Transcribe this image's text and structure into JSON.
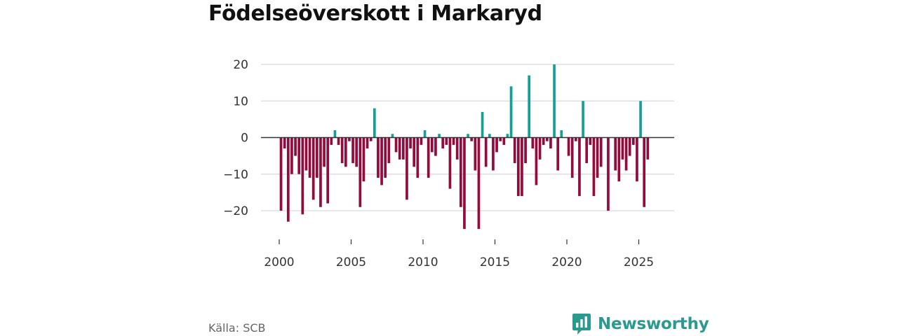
{
  "chart_data": {
    "type": "bar",
    "title": "Födelseöverskott i Markaryd",
    "xlabel": "",
    "ylabel": "",
    "ylim": [
      -27,
      20
    ],
    "xlim": [
      1998.8,
      2027.2
    ],
    "yticks": [
      20,
      10,
      0,
      -10,
      -20
    ],
    "ytick_labels": [
      "20",
      "10",
      "0",
      "−10",
      "−20"
    ],
    "xticks": [
      2000,
      2005,
      2010,
      2015,
      2020,
      2025
    ],
    "xtick_labels": [
      "2000",
      "2005",
      "2010",
      "2015",
      "2020",
      "2025"
    ],
    "grid": true,
    "positive_color": "#16a095",
    "negative_color": "#930a3c",
    "series": [
      {
        "name": "Födelseöverskott",
        "values": [
          -20,
          -3,
          -23,
          -10,
          -5,
          -10,
          -21,
          -9,
          -11,
          -17,
          -11,
          -19,
          -8,
          -18,
          -2,
          2,
          -2,
          -7,
          -8,
          -1,
          -7,
          -8,
          -19,
          -12,
          -3,
          -1,
          8,
          -11,
          -13,
          -11,
          -7,
          1,
          -4,
          -6,
          -6,
          -17,
          -3,
          -8,
          -11,
          -2,
          2,
          -11,
          -4,
          -5,
          1,
          -3,
          -2,
          -14,
          -2,
          -6,
          -19,
          -25,
          1,
          -1,
          -9,
          -25,
          7,
          -8,
          1,
          -9,
          -4,
          -1,
          -2,
          1,
          14,
          -7,
          -16,
          -16,
          -7,
          17,
          -3,
          -13,
          -6,
          -2,
          -1,
          -3,
          20,
          -9,
          2,
          0,
          -5,
          -11,
          -1,
          -16,
          10,
          -7,
          -2,
          -16,
          -11,
          -8,
          0,
          -20,
          0,
          -9,
          -12,
          -6,
          -9,
          -5,
          -2,
          -12,
          10,
          -19,
          -6
        ]
      }
    ]
  },
  "source": "Källa: SCB",
  "brand": {
    "name": "Newsworthy",
    "color": "#2b9a8e",
    "logo_icon": "bar-chart-speech-bubble-icon"
  }
}
